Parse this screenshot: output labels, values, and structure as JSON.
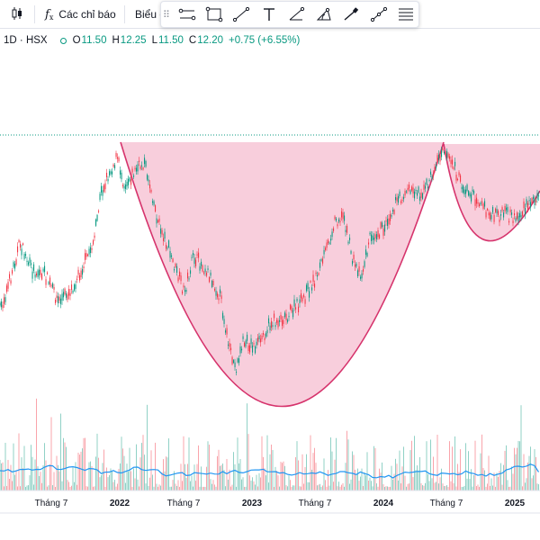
{
  "toolbar": {
    "chart_type_icon": "candlestick-icon",
    "indicators_icon": "function-fx-icon",
    "indicators_label": "Các chỉ báo",
    "templates_label": "Biểu đ"
  },
  "drawing_tools": [
    {
      "id": "horizontal-channel",
      "icon": "parallel-lines-icon"
    },
    {
      "id": "rectangle",
      "icon": "rectangle-icon"
    },
    {
      "id": "trend-line",
      "icon": "trend-line-icon"
    },
    {
      "id": "text",
      "icon": "text-icon"
    },
    {
      "id": "ray",
      "icon": "ray-icon"
    },
    {
      "id": "arc",
      "icon": "arc-icon"
    },
    {
      "id": "brush",
      "icon": "brush-icon"
    },
    {
      "id": "path",
      "icon": "path-icon"
    },
    {
      "id": "fib",
      "icon": "fib-levels-icon"
    }
  ],
  "legend": {
    "symbol_suffix": "· 1D · HSX",
    "status_dot_color": "#089981",
    "open_label": "O",
    "open": "11.50",
    "high_label": "H",
    "high": "12.25",
    "low_label": "L",
    "low": "11.50",
    "close_label": "C",
    "close": "12.20",
    "change": "+0.75 (+6.55%)"
  },
  "x_axis": {
    "labels": [
      "Tháng 7",
      "2022",
      "Tháng 7",
      "2023",
      "Tháng 7",
      "2024",
      "Tháng 7",
      "2025"
    ],
    "bold": [
      false,
      true,
      false,
      true,
      false,
      true,
      false,
      true
    ]
  },
  "colors": {
    "up": "#089981",
    "down": "#f23645",
    "pattern_fill": "#f7c6d6",
    "pattern_stroke": "#d6336c",
    "volume_ma": "#2196f3",
    "dotted_level": "#089981"
  },
  "annotation": {
    "type": "cup-and-handle",
    "shape": "filled-arcs"
  }
}
